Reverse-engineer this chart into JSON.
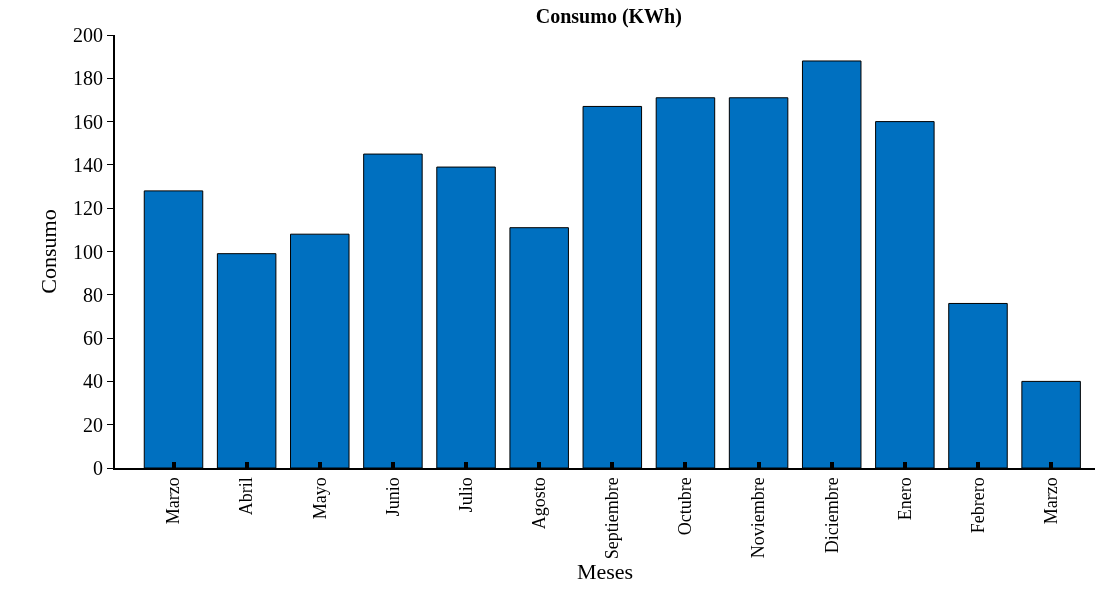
{
  "chart_data": {
    "type": "bar",
    "title": "Consumo (KWh)",
    "xlabel": "Meses",
    "ylabel": "Consumo",
    "categories": [
      "Marzo",
      "Abril",
      "Mayo",
      "Junio",
      "Julio",
      "Agosto",
      "Septiembre",
      "Octubre",
      "Noviembre",
      "Diciembre",
      "Enero",
      "Febrero",
      "Marzo"
    ],
    "values": [
      128,
      99,
      108,
      145,
      139,
      111,
      167,
      171,
      171,
      188,
      160,
      76,
      40
    ],
    "color": "#0070c0",
    "ylim": [
      0,
      200
    ],
    "yticks": [
      0,
      20,
      40,
      60,
      80,
      100,
      120,
      140,
      160,
      180,
      200
    ]
  }
}
